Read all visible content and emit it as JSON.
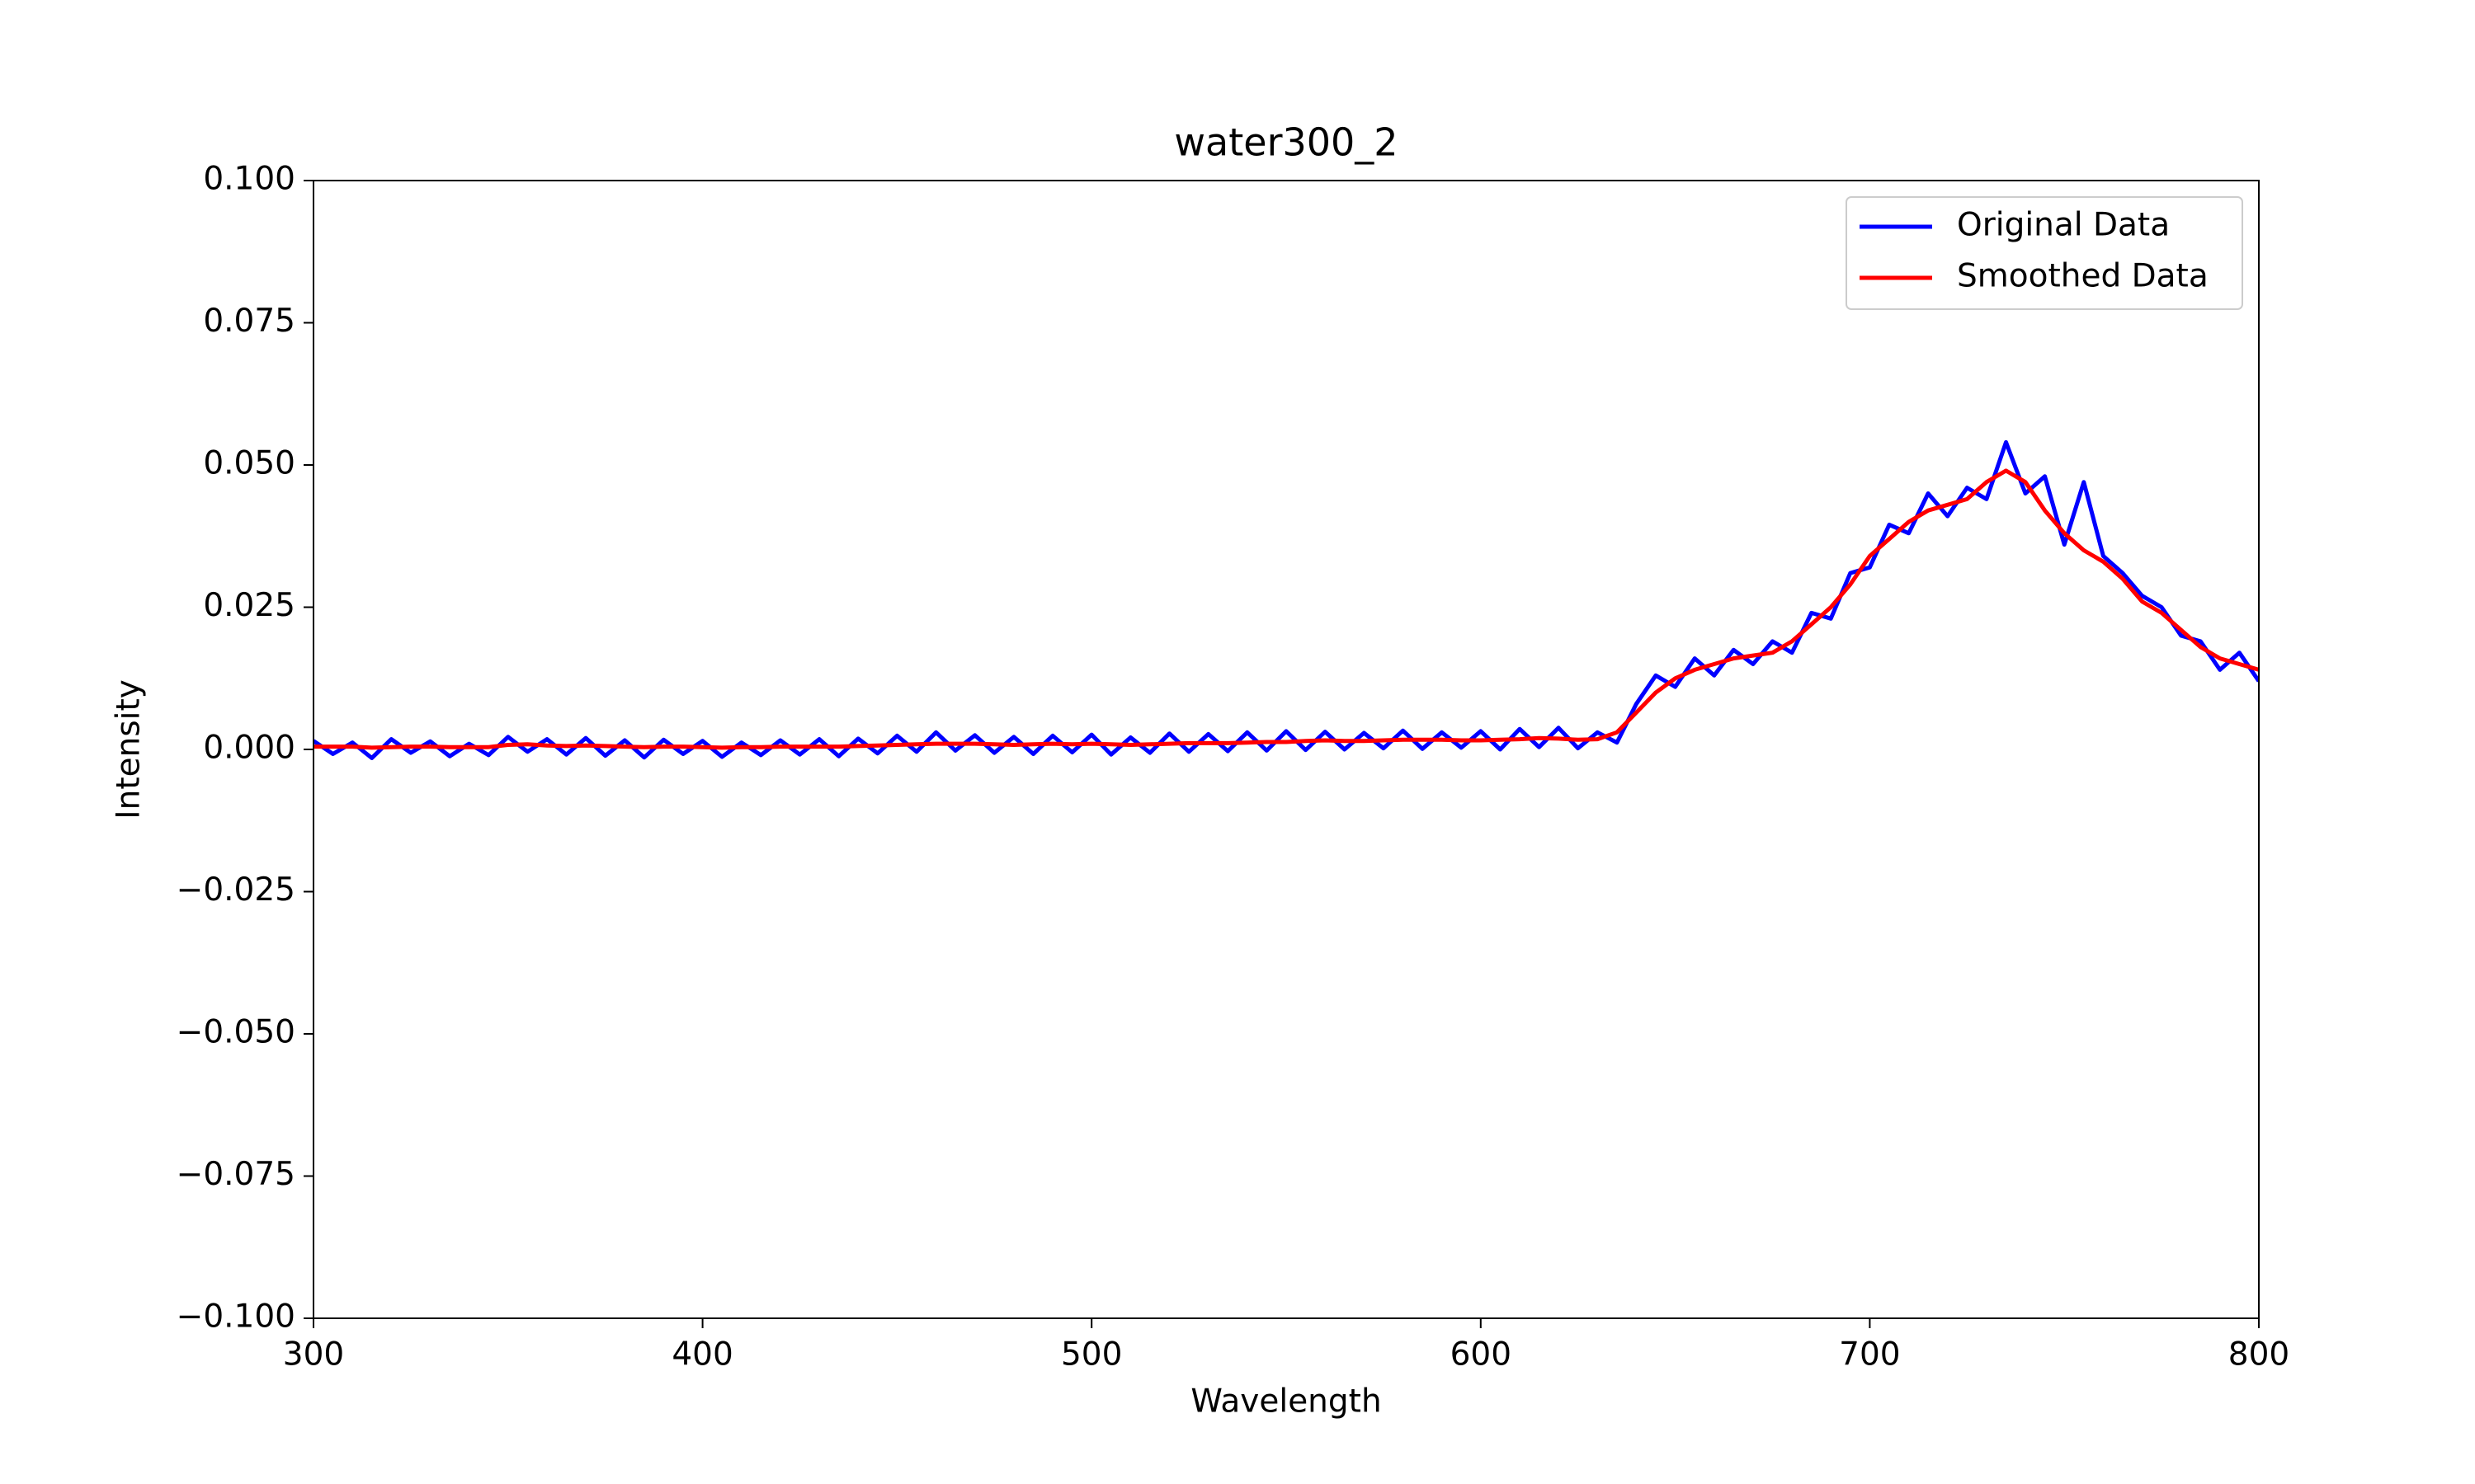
{
  "chart_data": {
    "type": "line",
    "title": "water300_2",
    "x_label": "Wavelength",
    "y_label": "Intensity",
    "x": [
      300,
      305,
      310,
      315,
      320,
      325,
      330,
      335,
      340,
      345,
      350,
      355,
      360,
      365,
      370,
      375,
      380,
      385,
      390,
      395,
      400,
      405,
      410,
      415,
      420,
      425,
      430,
      435,
      440,
      445,
      450,
      455,
      460,
      465,
      470,
      475,
      480,
      485,
      490,
      495,
      500,
      505,
      510,
      515,
      520,
      525,
      530,
      535,
      540,
      545,
      550,
      555,
      560,
      565,
      570,
      575,
      580,
      585,
      590,
      595,
      600,
      605,
      610,
      615,
      620,
      625,
      630,
      635,
      640,
      645,
      650,
      655,
      660,
      665,
      670,
      675,
      680,
      685,
      690,
      695,
      700,
      705,
      710,
      715,
      720,
      725,
      730,
      735,
      740,
      745,
      750,
      755,
      760,
      765,
      770,
      775,
      780,
      785,
      790,
      795,
      800
    ],
    "series": [
      {
        "name": "Original Data",
        "color": "#0000ff",
        "values": [
          0.0015,
          -0.0008,
          0.0012,
          -0.0015,
          0.0018,
          -0.0006,
          0.0014,
          -0.0012,
          0.001,
          -0.001,
          0.0022,
          -0.0004,
          0.0018,
          -0.0009,
          0.002,
          -0.0011,
          0.0016,
          -0.0014,
          0.0017,
          -0.0008,
          0.0015,
          -0.0013,
          0.0012,
          -0.001,
          0.0016,
          -0.0009,
          0.0018,
          -0.0012,
          0.0019,
          -0.0007,
          0.0024,
          -0.0004,
          0.003,
          -0.0002,
          0.0025,
          -0.0006,
          0.0022,
          -0.0008,
          0.0024,
          -0.0005,
          0.0026,
          -0.0009,
          0.0021,
          -0.0006,
          0.0028,
          -0.0004,
          0.0027,
          -0.0003,
          0.003,
          -0.0002,
          0.0032,
          -0.0001,
          0.0031,
          0.0,
          0.0029,
          0.0002,
          0.0033,
          0.0001,
          0.003,
          0.0003,
          0.0032,
          0.0,
          0.0036,
          0.0004,
          0.0038,
          0.0002,
          0.003,
          0.0012,
          0.008,
          0.013,
          0.011,
          0.016,
          0.013,
          0.0175,
          0.015,
          0.019,
          0.017,
          0.024,
          0.023,
          0.031,
          0.032,
          0.0395,
          0.038,
          0.045,
          0.041,
          0.046,
          0.044,
          0.054,
          0.045,
          0.048,
          0.036,
          0.047,
          0.034,
          0.031,
          0.027,
          0.025,
          0.02,
          0.019,
          0.014,
          0.017,
          0.012
        ]
      },
      {
        "name": "Smoothed Data",
        "color": "#ff0000",
        "values": [
          0.0005,
          0.0005,
          0.0005,
          0.0003,
          0.0004,
          0.0005,
          0.0005,
          0.0004,
          0.0004,
          0.0004,
          0.0008,
          0.0009,
          0.0007,
          0.0006,
          0.0007,
          0.0006,
          0.0005,
          0.0004,
          0.0005,
          0.0005,
          0.0004,
          0.0003,
          0.0004,
          0.0004,
          0.0005,
          0.0005,
          0.0005,
          0.0005,
          0.0006,
          0.0007,
          0.0008,
          0.0009,
          0.001,
          0.001,
          0.001,
          0.0009,
          0.0008,
          0.0009,
          0.001,
          0.0009,
          0.001,
          0.0009,
          0.0008,
          0.0009,
          0.001,
          0.0011,
          0.0011,
          0.0011,
          0.0012,
          0.0013,
          0.0013,
          0.0015,
          0.0016,
          0.0015,
          0.0015,
          0.0016,
          0.0017,
          0.0017,
          0.0017,
          0.0016,
          0.0016,
          0.0017,
          0.0018,
          0.002,
          0.0019,
          0.0017,
          0.0018,
          0.003,
          0.0065,
          0.01,
          0.0125,
          0.014,
          0.015,
          0.016,
          0.0165,
          0.017,
          0.019,
          0.022,
          0.025,
          0.029,
          0.034,
          0.037,
          0.04,
          0.042,
          0.043,
          0.044,
          0.047,
          0.049,
          0.047,
          0.042,
          0.038,
          0.035,
          0.033,
          0.03,
          0.026,
          0.024,
          0.021,
          0.018,
          0.016,
          0.015,
          0.014
        ]
      }
    ],
    "xlim": [
      300,
      800
    ],
    "xticks": [
      300,
      400,
      500,
      600,
      700,
      800
    ],
    "ylim": [
      -0.1,
      0.1
    ],
    "yticks": [
      {
        "value": -0.1,
        "label": "−0.100"
      },
      {
        "value": -0.075,
        "label": "−0.075"
      },
      {
        "value": -0.05,
        "label": "−0.050"
      },
      {
        "value": -0.025,
        "label": "−0.025"
      },
      {
        "value": 0,
        "label": "0.000"
      },
      {
        "value": 0.025,
        "label": "0.025"
      },
      {
        "value": 0.05,
        "label": "0.050"
      },
      {
        "value": 0.075,
        "label": "0.075"
      },
      {
        "value": 0.1,
        "label": "0.100"
      }
    ],
    "grid": false,
    "legend": "upper right"
  }
}
